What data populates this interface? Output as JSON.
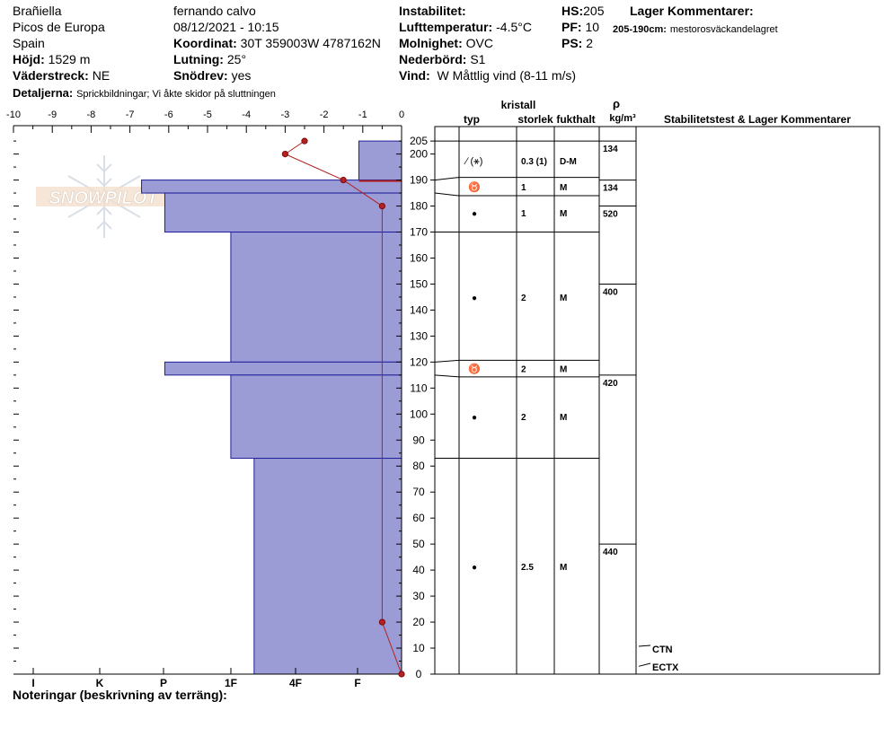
{
  "header": {
    "location": "Brañiella",
    "region": "Picos de Europa",
    "country": "Spain",
    "elevation_label": "Höjd:",
    "elevation_value": "1529 m",
    "aspect_label": "Väderstreck:",
    "aspect_value": "NE",
    "details_label": "Detaljerna:",
    "details_value": "Sprickbildningar;  Vi åkte skidor på sluttningen",
    "observer": "fernando calvo",
    "datetime": "08/12/2021 - 10:15",
    "coord_label": "Koordinat:",
    "coord_value": "30T 359003W 4787162N",
    "slope_label": "Lutning:",
    "slope_value": "25°",
    "drift_label": "Snödrev:",
    "drift_value": "yes",
    "instab_label": "Instabilitet:",
    "airtemp_label": "Lufttemperatur:",
    "airtemp_value": "-4.5°C",
    "sky_label": "Molnighet:",
    "sky_value": "OVC",
    "precip_label": "Nederbörd:",
    "precip_value": "S1",
    "wind_label": "Vind:",
    "wind_value": "W Måttlig vind (8-11 m/s)",
    "hs_label": "HS:",
    "hs_value": "205",
    "pf_label": "PF:",
    "pf_value": "10",
    "ps_label": "PS:",
    "ps_value": "2",
    "layer_comments_title": "Lager Kommentarer:",
    "layer_comment_range": "205-190cm:",
    "layer_comment_text": "mestorosväckandelagret"
  },
  "notes_label": "Noteringar (beskrivning av terräng):",
  "logo_text": "SNOWPILOT",
  "table_headers": {
    "crystal": "kristall",
    "type": "typ",
    "size": "storlek",
    "wetness": "fukthalt",
    "rho": "ρ",
    "density_unit": "kg/m³",
    "stability": "Stabilitetstest & Lager Kommentarer"
  },
  "colors": {
    "hardness_fill": "#9b9bd6",
    "hardness_stroke": "#1f1f9a",
    "temp_line": "#b22222"
  },
  "chart_data": {
    "type": "snow-profile",
    "temp_axis": {
      "range": [
        -10,
        0
      ],
      "ticks": [
        -10,
        -9,
        -8,
        -7,
        -6,
        -5,
        -4,
        -3,
        -2,
        -1,
        0
      ]
    },
    "hardness_axis": {
      "labels": [
        "I",
        "K",
        "P",
        "1F",
        "4F",
        "F"
      ]
    },
    "height_axis": {
      "range": [
        0,
        205
      ],
      "ticks": [
        205,
        200,
        190,
        180,
        170,
        160,
        150,
        140,
        130,
        120,
        110,
        100,
        90,
        80,
        70,
        60,
        50,
        40,
        30,
        20,
        10,
        0
      ]
    },
    "hardness_layers": [
      {
        "top": 205,
        "bottom": 190,
        "hardness_index": -1.1
      },
      {
        "top": 190,
        "bottom": 185,
        "hardness_index": -6.7
      },
      {
        "top": 185,
        "bottom": 170,
        "hardness_index": -6.1
      },
      {
        "top": 170,
        "bottom": 120,
        "hardness_index": -4.4
      },
      {
        "top": 120,
        "bottom": 115,
        "hardness_index": -6.1
      },
      {
        "top": 115,
        "bottom": 83,
        "hardness_index": -4.4
      },
      {
        "top": 83,
        "bottom": 0,
        "hardness_index": -3.8
      }
    ],
    "temperature": [
      {
        "h": 205,
        "t": -2.5
      },
      {
        "h": 200,
        "t": -3.0
      },
      {
        "h": 190,
        "t": -1.5
      },
      {
        "h": 180,
        "t": -0.5
      },
      {
        "h": 20,
        "t": -0.5
      },
      {
        "h": 0,
        "t": 0.0
      }
    ],
    "layers": [
      {
        "top": 205,
        "bottom": 190,
        "type": "∕ (⚹)",
        "size": "0.3 (1)",
        "wetness": "D-M"
      },
      {
        "top": 190,
        "bottom": 185,
        "type": "♉",
        "size": "1",
        "wetness": "M"
      },
      {
        "top": 185,
        "bottom": 170,
        "type": "●",
        "size": "1",
        "wetness": "M"
      },
      {
        "top": 170,
        "bottom": 120,
        "type": "●",
        "size": "2",
        "wetness": "M"
      },
      {
        "top": 120,
        "bottom": 115,
        "type": "♉",
        "size": "2",
        "wetness": "M"
      },
      {
        "top": 115,
        "bottom": 83,
        "type": "●",
        "size": "2",
        "wetness": "M"
      },
      {
        "top": 83,
        "bottom": 0,
        "type": "●",
        "size": "2.5",
        "wetness": "M"
      }
    ],
    "densities": [
      {
        "top": 205,
        "value": "134"
      },
      {
        "top": 190,
        "value": "134"
      },
      {
        "top": 180,
        "value": "520"
      },
      {
        "top": 150,
        "value": "400"
      },
      {
        "top": 115,
        "value": "420"
      },
      {
        "top": 50,
        "value": "440"
      }
    ],
    "tests": [
      {
        "h": 10,
        "label": "CTN"
      },
      {
        "h": 3,
        "label": "ECTX"
      }
    ]
  }
}
